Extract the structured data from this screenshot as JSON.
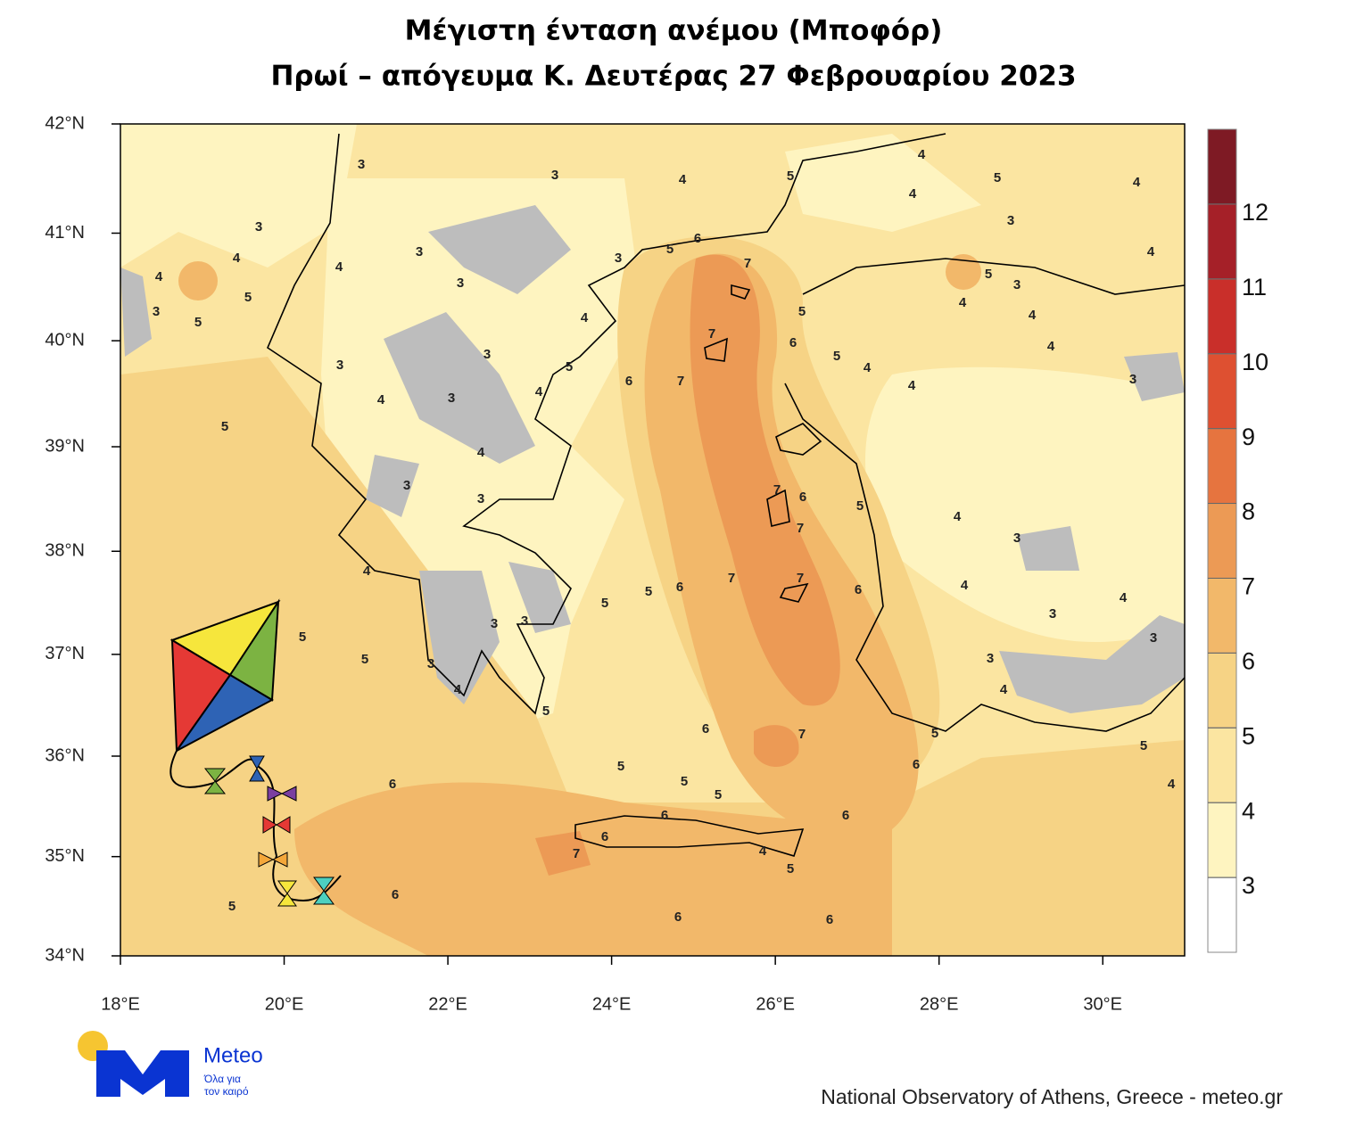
{
  "header": {
    "title_line1": "Μέγιστη ένταση ανέμου (Μποφόρ)",
    "title_line2": "Πρωί – απόγευμα Κ. Δευτέρας 27 Φεβρουαρίου 2023"
  },
  "map": {
    "xlim": [
      18,
      31
    ],
    "ylim": [
      34,
      42
    ],
    "xticks": [
      {
        "value": 18,
        "label": "18°E"
      },
      {
        "value": 20,
        "label": "20°E"
      },
      {
        "value": 22,
        "label": "22°E"
      },
      {
        "value": 24,
        "label": "24°E"
      },
      {
        "value": 26,
        "label": "26°E"
      },
      {
        "value": 28,
        "label": "28°E"
      },
      {
        "value": 30,
        "label": "30°E"
      }
    ],
    "yticks": [
      {
        "value": 34,
        "label": "34°N"
      },
      {
        "value": 35,
        "label": "35°N"
      },
      {
        "value": 36,
        "label": "36°N"
      },
      {
        "value": 37,
        "label": "37°N"
      },
      {
        "value": 38,
        "label": "38°N"
      },
      {
        "value": 39,
        "label": "39°N"
      },
      {
        "value": 40,
        "label": "40°N"
      },
      {
        "value": 41,
        "label": "41°N"
      },
      {
        "value": 42,
        "label": "42°N"
      }
    ],
    "colorbar": {
      "levels": [
        3,
        4,
        5,
        6,
        7,
        8,
        9,
        10,
        11,
        12
      ],
      "colors": [
        "#ffffff",
        "#fef4c0",
        "#fbe5a1",
        "#f6d385",
        "#f2b86a",
        "#ec9a55",
        "#e6743f",
        "#de5031",
        "#c92f2a",
        "#a52028",
        "#7e1a24"
      ]
    },
    "contour_labels": [
      "3",
      "3",
      "4",
      "5",
      "4",
      "5",
      "4",
      "4",
      "3",
      "3",
      "4",
      "4",
      "4",
      "4",
      "3",
      "3",
      "3",
      "6",
      "5",
      "7",
      "5",
      "3",
      "4",
      "5",
      "3",
      "5",
      "5",
      "4",
      "4",
      "7",
      "6",
      "4",
      "3",
      "3",
      "5",
      "5",
      "4",
      "6",
      "7",
      "4",
      "3",
      "3",
      "4",
      "4",
      "5",
      "4",
      "3",
      "7",
      "6",
      "3",
      "5",
      "4",
      "7",
      "3",
      "4",
      "7",
      "7",
      "6",
      "5",
      "6",
      "4",
      "5",
      "4",
      "3",
      "3",
      "3",
      "5",
      "3",
      "5",
      "3",
      "3",
      "4",
      "4",
      "5",
      "6",
      "7",
      "5",
      "5",
      "6",
      "5",
      "6",
      "5",
      "5",
      "4",
      "6",
      "6",
      "6",
      "7",
      "4",
      "5",
      "6",
      "5",
      "6",
      "6"
    ]
  },
  "logo": {
    "name": "Meteo",
    "tagline_1": "Όλα για",
    "tagline_2": "τον καιρό"
  },
  "credit": "National Observatory of Athens, Greece - meteo.gr"
}
